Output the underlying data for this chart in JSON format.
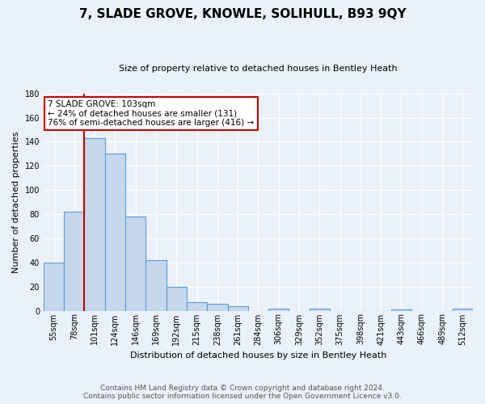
{
  "title": "7, SLADE GROVE, KNOWLE, SOLIHULL, B93 9QY",
  "subtitle": "Size of property relative to detached houses in Bentley Heath",
  "xlabel": "Distribution of detached houses by size in Bentley Heath",
  "ylabel": "Number of detached properties",
  "bar_labels": [
    "55sqm",
    "78sqm",
    "101sqm",
    "124sqm",
    "146sqm",
    "169sqm",
    "192sqm",
    "215sqm",
    "238sqm",
    "261sqm",
    "284sqm",
    "306sqm",
    "329sqm",
    "352sqm",
    "375sqm",
    "398sqm",
    "421sqm",
    "443sqm",
    "466sqm",
    "489sqm",
    "512sqm"
  ],
  "bar_values": [
    40,
    82,
    143,
    130,
    78,
    42,
    20,
    7,
    6,
    4,
    0,
    2,
    0,
    2,
    0,
    0,
    0,
    1,
    0,
    0,
    2
  ],
  "bar_color": "#c5d8ed",
  "bar_edge_color": "#5b9bd5",
  "red_line_bar_index": 2,
  "annotation_box_text": "7 SLADE GROVE: 103sqm\n← 24% of detached houses are smaller (131)\n76% of semi-detached houses are larger (416) →",
  "ylim": [
    0,
    180
  ],
  "yticks": [
    0,
    20,
    40,
    60,
    80,
    100,
    120,
    140,
    160,
    180
  ],
  "footer_line1": "Contains HM Land Registry data © Crown copyright and database right 2024.",
  "footer_line2": "Contains public sector information licensed under the Open Government Licence v3.0.",
  "bg_color": "#eaf1f8",
  "plot_bg_color": "#eaf1f8",
  "grid_color": "#ffffff",
  "annotation_box_color": "#ffffff",
  "annotation_box_edge_color": "#cc0000",
  "red_line_color": "#cc0000",
  "title_fontsize": 11,
  "subtitle_fontsize": 8,
  "ylabel_fontsize": 8,
  "xlabel_fontsize": 8,
  "tick_fontsize": 7,
  "footer_fontsize": 6.5,
  "annotation_fontsize": 7.5
}
